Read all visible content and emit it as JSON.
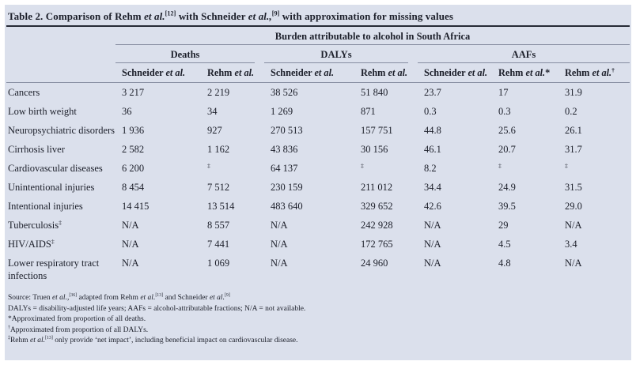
{
  "colors": {
    "panel_bg": "#dbe0ec",
    "text": "#1c1f2a",
    "rule_dark": "#262a35",
    "rule_gray": "#868da0"
  },
  "title_segments": [
    {
      "t": "Table 2. Comparison of Rehm "
    },
    {
      "t": "et al.",
      "i": true
    },
    {
      "t": "[12]",
      "sup": true
    },
    {
      "t": " with Schneider "
    },
    {
      "t": "et al.,",
      "i": true
    },
    {
      "t": "[9]",
      "sup": true
    },
    {
      "t": " with approximation for missing values"
    }
  ],
  "table": {
    "spanner": "Burden attributable to alcohol in South Africa",
    "groups": [
      {
        "label": "Deaths"
      },
      {
        "label": "DALYs"
      },
      {
        "label": "AAFs"
      }
    ],
    "subheaders": [
      [
        {
          "t": "Schneider "
        },
        {
          "t": "et al.",
          "i": true
        }
      ],
      [
        {
          "t": "Rehm "
        },
        {
          "t": "et al.",
          "i": true
        }
      ],
      [
        {
          "t": "Schneider "
        },
        {
          "t": "et al.",
          "i": true
        }
      ],
      [
        {
          "t": "Rehm "
        },
        {
          "t": "et al.",
          "i": true
        }
      ],
      [
        {
          "t": "Schneider "
        },
        {
          "t": "et al.",
          "i": true
        }
      ],
      [
        {
          "t": "Rehm "
        },
        {
          "t": "et al.",
          "i": true
        },
        {
          "t": "*"
        }
      ],
      [
        {
          "t": "Rehm "
        },
        {
          "t": "et al.",
          "i": true
        },
        {
          "t": "†",
          "sup": true
        }
      ]
    ],
    "rows": [
      {
        "label": [
          {
            "t": "Cancers"
          }
        ],
        "values": [
          "3 217",
          "2 219",
          "38 526",
          "51 840",
          "23.7",
          "17",
          "31.9"
        ]
      },
      {
        "label": [
          {
            "t": "Low birth weight"
          }
        ],
        "values": [
          "36",
          "34",
          "1 269",
          "871",
          "0.3",
          "0.3",
          "0.2"
        ]
      },
      {
        "label": [
          {
            "t": "Neuropsychiatric disorders"
          }
        ],
        "values": [
          "1 936",
          "927",
          "270 513",
          "157 751",
          "44.8",
          "25.6",
          "26.1"
        ]
      },
      {
        "label": [
          {
            "t": "Cirrhosis liver"
          }
        ],
        "values": [
          "2 582",
          "1 162",
          "43 836",
          "30 156",
          "46.1",
          "20.7",
          "31.7"
        ]
      },
      {
        "label": [
          {
            "t": "Cardiovascular diseases"
          }
        ],
        "values": [
          "6 200",
          "‡",
          "64 137",
          "‡",
          "8.2",
          "‡",
          "‡"
        ]
      },
      {
        "label": [
          {
            "t": "Unintentional injuries"
          }
        ],
        "values": [
          "8 454",
          "7 512",
          "230 159",
          "211 012",
          "34.4",
          "24.9",
          "31.5"
        ]
      },
      {
        "label": [
          {
            "t": "Intentional injuries"
          }
        ],
        "values": [
          "14 415",
          "13 514",
          "483 640",
          "329 652",
          "42.6",
          "39.5",
          "29.0"
        ]
      },
      {
        "label": [
          {
            "t": "Tuberculosis"
          },
          {
            "t": "‡",
            "sup": true
          }
        ],
        "values": [
          "N/A",
          "8 557",
          "N/A",
          "242 928",
          "N/A",
          "29",
          "N/A"
        ]
      },
      {
        "label": [
          {
            "t": "HIV/AIDS"
          },
          {
            "t": "‡",
            "sup": true
          }
        ],
        "values": [
          "N/A",
          "7 441",
          "N/A",
          "172 765",
          "N/A",
          "4.5",
          "3.4"
        ]
      },
      {
        "label": [
          {
            "t": "Lower respiratory tract infections"
          }
        ],
        "values": [
          "N/A",
          "1 069",
          "N/A",
          "24 960",
          "N/A",
          "4.8",
          "N/A"
        ]
      }
    ]
  },
  "footnotes": [
    [
      {
        "t": "Source: Truen "
      },
      {
        "t": "et al.,",
        "i": true
      },
      {
        "t": "[36]",
        "sup": true
      },
      {
        "t": " adapted from Rehm "
      },
      {
        "t": "et al.",
        "i": true
      },
      {
        "t": "[13]",
        "sup": true
      },
      {
        "t": " and Schneider "
      },
      {
        "t": "et al.",
        "i": true
      },
      {
        "t": "[9]",
        "sup": true
      }
    ],
    [
      {
        "t": "DALYs = disability-adjusted life years; AAFs = alcohol-attributable fractions; N/A = not available."
      }
    ],
    [
      {
        "t": "*Approximated from proportion of all deaths."
      }
    ],
    [
      {
        "t": "†",
        "sup": true
      },
      {
        "t": "Approximated from proportion of all DALYs."
      }
    ],
    [
      {
        "t": "‡",
        "sup": true
      },
      {
        "t": "Rehm "
      },
      {
        "t": "et al.",
        "i": true
      },
      {
        "t": "[13]",
        "sup": true
      },
      {
        "t": " only provide ‘net impact’, including beneficial impact on cardiovascular disease."
      }
    ]
  ]
}
